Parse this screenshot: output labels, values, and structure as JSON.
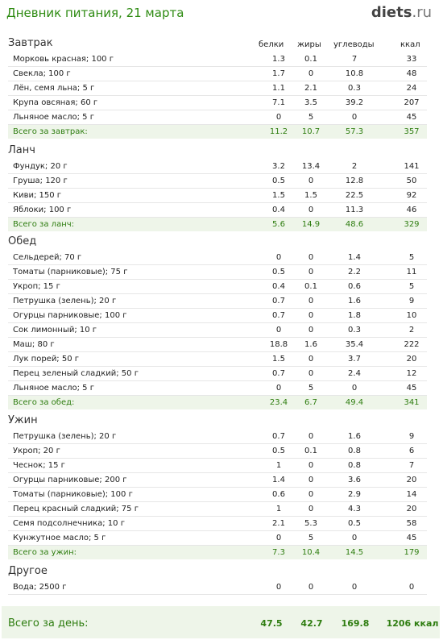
{
  "header": {
    "title": "Дневник питания, 21 марта",
    "logo_main": "diets",
    "logo_dot": ".",
    "logo_tld": "ru"
  },
  "columns": [
    "белки",
    "жиры",
    "углеводы",
    "ккал"
  ],
  "sections": [
    {
      "title": "Завтрак",
      "items": [
        {
          "name": "Морковь красная; 100 г",
          "protein": "1.3",
          "fat": "0.1",
          "carbs": "7",
          "kcal": "33"
        },
        {
          "name": "Свекла; 100 г",
          "protein": "1.7",
          "fat": "0",
          "carbs": "10.8",
          "kcal": "48"
        },
        {
          "name": "Лён, семя льна; 5 г",
          "protein": "1.1",
          "fat": "2.1",
          "carbs": "0.3",
          "kcal": "24"
        },
        {
          "name": "Крупа овсяная; 60 г",
          "protein": "7.1",
          "fat": "3.5",
          "carbs": "39.2",
          "kcal": "207"
        },
        {
          "name": "Льняное масло; 5 г",
          "protein": "0",
          "fat": "5",
          "carbs": "0",
          "kcal": "45"
        }
      ],
      "total": {
        "name": "Всего за завтрак:",
        "protein": "11.2",
        "fat": "10.7",
        "carbs": "57.3",
        "kcal": "357"
      }
    },
    {
      "title": "Ланч",
      "items": [
        {
          "name": "Фундук; 20 г",
          "protein": "3.2",
          "fat": "13.4",
          "carbs": "2",
          "kcal": "141"
        },
        {
          "name": "Груша; 120 г",
          "protein": "0.5",
          "fat": "0",
          "carbs": "12.8",
          "kcal": "50"
        },
        {
          "name": "Киви; 150 г",
          "protein": "1.5",
          "fat": "1.5",
          "carbs": "22.5",
          "kcal": "92"
        },
        {
          "name": "Яблоки; 100 г",
          "protein": "0.4",
          "fat": "0",
          "carbs": "11.3",
          "kcal": "46"
        }
      ],
      "total": {
        "name": "Всего за ланч:",
        "protein": "5.6",
        "fat": "14.9",
        "carbs": "48.6",
        "kcal": "329"
      }
    },
    {
      "title": "Обед",
      "items": [
        {
          "name": "Сельдерей; 70 г",
          "protein": "0",
          "fat": "0",
          "carbs": "1.4",
          "kcal": "5"
        },
        {
          "name": "Томаты (парниковые); 75 г",
          "protein": "0.5",
          "fat": "0",
          "carbs": "2.2",
          "kcal": "11"
        },
        {
          "name": "Укроп; 15 г",
          "protein": "0.4",
          "fat": "0.1",
          "carbs": "0.6",
          "kcal": "5"
        },
        {
          "name": "Петрушка (зелень); 20 г",
          "protein": "0.7",
          "fat": "0",
          "carbs": "1.6",
          "kcal": "9"
        },
        {
          "name": "Огурцы парниковые; 100 г",
          "protein": "0.7",
          "fat": "0",
          "carbs": "1.8",
          "kcal": "10"
        },
        {
          "name": "Сок лимонный; 10 г",
          "protein": "0",
          "fat": "0",
          "carbs": "0.3",
          "kcal": "2"
        },
        {
          "name": "Маш; 80 г",
          "protein": "18.8",
          "fat": "1.6",
          "carbs": "35.4",
          "kcal": "222"
        },
        {
          "name": "Лук порей; 50 г",
          "protein": "1.5",
          "fat": "0",
          "carbs": "3.7",
          "kcal": "20"
        },
        {
          "name": "Перец зеленый сладкий; 50 г",
          "protein": "0.7",
          "fat": "0",
          "carbs": "2.4",
          "kcal": "12"
        },
        {
          "name": "Льняное масло; 5 г",
          "protein": "0",
          "fat": "5",
          "carbs": "0",
          "kcal": "45"
        }
      ],
      "total": {
        "name": "Всего за обед:",
        "protein": "23.4",
        "fat": "6.7",
        "carbs": "49.4",
        "kcal": "341"
      }
    },
    {
      "title": "Ужин",
      "items": [
        {
          "name": "Петрушка (зелень); 20 г",
          "protein": "0.7",
          "fat": "0",
          "carbs": "1.6",
          "kcal": "9"
        },
        {
          "name": "Укроп; 20 г",
          "protein": "0.5",
          "fat": "0.1",
          "carbs": "0.8",
          "kcal": "6"
        },
        {
          "name": "Чеснок; 15 г",
          "protein": "1",
          "fat": "0",
          "carbs": "0.8",
          "kcal": "7"
        },
        {
          "name": "Огурцы парниковые; 200 г",
          "protein": "1.4",
          "fat": "0",
          "carbs": "3.6",
          "kcal": "20"
        },
        {
          "name": "Томаты (парниковые); 100 г",
          "protein": "0.6",
          "fat": "0",
          "carbs": "2.9",
          "kcal": "14"
        },
        {
          "name": "Перец красный сладкий; 75 г",
          "protein": "1",
          "fat": "0",
          "carbs": "4.3",
          "kcal": "20"
        },
        {
          "name": "Семя подсолнечника; 10 г",
          "protein": "2.1",
          "fat": "5.3",
          "carbs": "0.5",
          "kcal": "58"
        },
        {
          "name": "Кунжутное масло; 5 г",
          "protein": "0",
          "fat": "5",
          "carbs": "0",
          "kcal": "45"
        }
      ],
      "total": {
        "name": "Всего за ужин:",
        "protein": "7.3",
        "fat": "10.4",
        "carbs": "14.5",
        "kcal": "179"
      }
    },
    {
      "title": "Другое",
      "items": [
        {
          "name": "Вода; 2500 г",
          "protein": "0",
          "fat": "0",
          "carbs": "0",
          "kcal": "0"
        }
      ],
      "total": null
    }
  ],
  "day_total": {
    "label": "Всего за день:",
    "protein": "47.5",
    "fat": "42.7",
    "carbs": "169.8",
    "kcal": "1206 ккал"
  }
}
